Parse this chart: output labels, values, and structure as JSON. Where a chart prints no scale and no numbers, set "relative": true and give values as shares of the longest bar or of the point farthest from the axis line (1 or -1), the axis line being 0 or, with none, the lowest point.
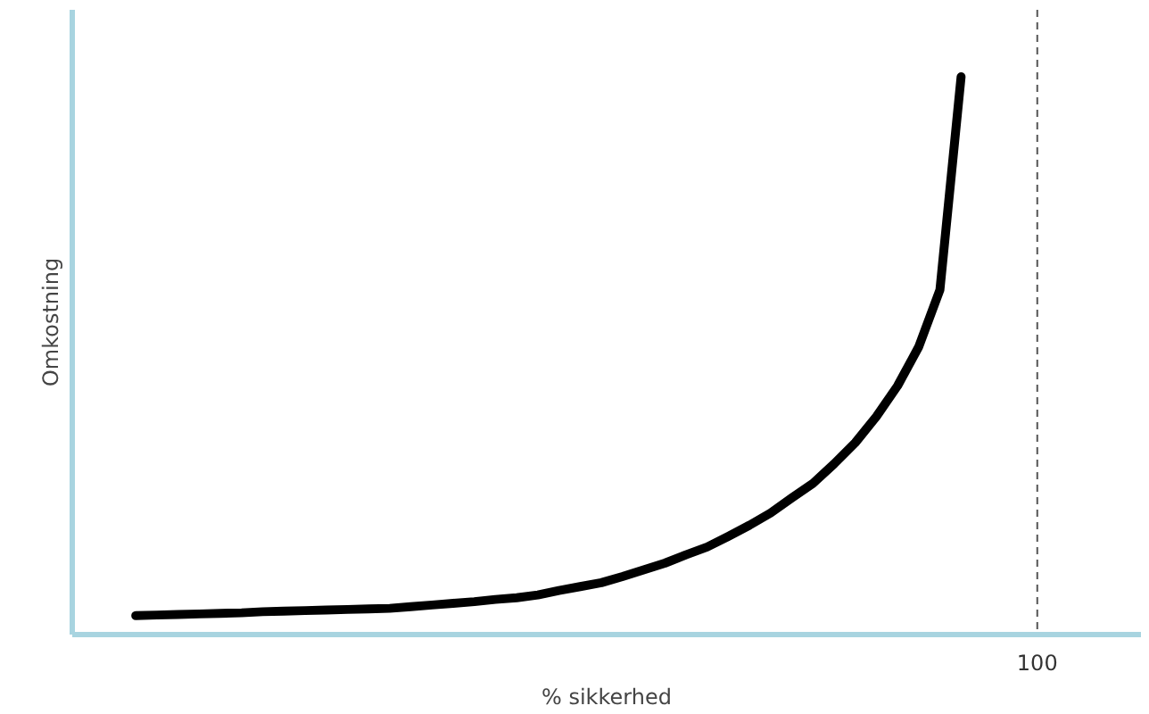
{
  "chart_data": {
    "type": "line",
    "xlabel": "% sikkerhed",
    "ylabel": "Omkostning",
    "relative": true,
    "categories": [
      null,
      null,
      null,
      null,
      null,
      null,
      null,
      null,
      null,
      null,
      null,
      null,
      null,
      null,
      null,
      null,
      null,
      null,
      null,
      null,
      null,
      null,
      null,
      null,
      null,
      null,
      null,
      null,
      null,
      null,
      null,
      null,
      null,
      null,
      null,
      null,
      null,
      null,
      null,
      null
    ],
    "series": [
      {
        "color": "#000000",
        "values": [
          0.034,
          0.035,
          0.036,
          0.037,
          0.038,
          0.039,
          0.041,
          0.042,
          0.043,
          0.044,
          0.045,
          0.046,
          0.047,
          0.05,
          0.053,
          0.056,
          0.059,
          0.063,
          0.066,
          0.071,
          0.079,
          0.086,
          0.093,
          0.104,
          0.116,
          0.128,
          0.143,
          0.157,
          0.176,
          0.196,
          0.218,
          0.245,
          0.271,
          0.306,
          0.344,
          0.391,
          0.446,
          0.516,
          0.618,
          1.0
        ]
      }
    ],
    "annotations": [
      "100"
    ],
    "marker": "none",
    "line_style": "solid"
  }
}
